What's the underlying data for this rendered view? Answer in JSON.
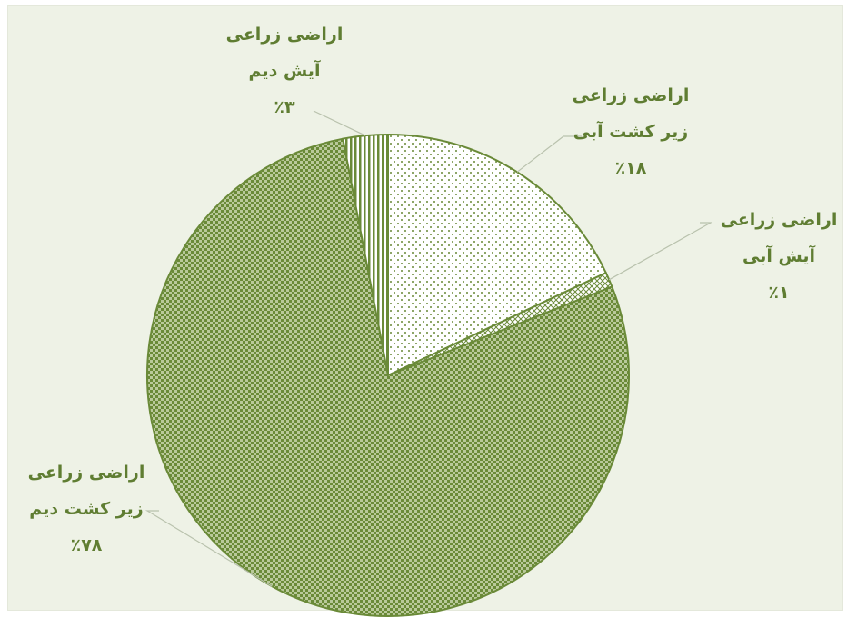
{
  "chart_data": {
    "type": "pie",
    "title": "",
    "slices": [
      {
        "line1": "اراضی زراعی",
        "line2": "زیر کشت آبی",
        "pct_text": "٪۱۸",
        "value": 18,
        "pattern": "dots"
      },
      {
        "line1": "اراضی زراعی",
        "line2": "آیش آبی",
        "pct_text": "٪۱",
        "value": 1,
        "pattern": "crosshatch"
      },
      {
        "line1": "اراضی زراعی",
        "line2": "زیر کشت دیم",
        "pct_text": "٪۷۸",
        "value": 78,
        "pattern": "checker"
      },
      {
        "line1": "اراضی زراعی",
        "line2": "آیش دیم",
        "pct_text": "٪۳",
        "value": 3,
        "pattern": "vstripes"
      }
    ],
    "colors": {
      "accent": "#6a8a38",
      "text": "#5f7d32",
      "background": "#eef2e6"
    }
  }
}
